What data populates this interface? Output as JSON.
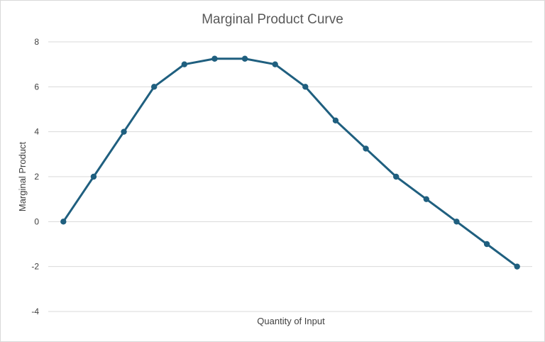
{
  "chart_data": {
    "type": "line",
    "title": "Marginal Product Curve",
    "xlabel": "Quantity of Input",
    "ylabel": "Marginal Product",
    "x": [
      1,
      2,
      3,
      4,
      5,
      6,
      7,
      8,
      9,
      10,
      11,
      12,
      13,
      14,
      15,
      16
    ],
    "series": [
      {
        "values": [
          0,
          2,
          4,
          6,
          7,
          7.25,
          7.25,
          7,
          6,
          4.5,
          3.25,
          2,
          1,
          0,
          -1,
          -2
        ],
        "color": "#1f5f7f",
        "marker": "circle"
      }
    ],
    "ylim": [
      -4,
      8
    ],
    "yticks": [
      -4,
      -2,
      0,
      2,
      4,
      6,
      8
    ],
    "grid": true,
    "legend": "none",
    "x_tick_labels_shown": false
  }
}
